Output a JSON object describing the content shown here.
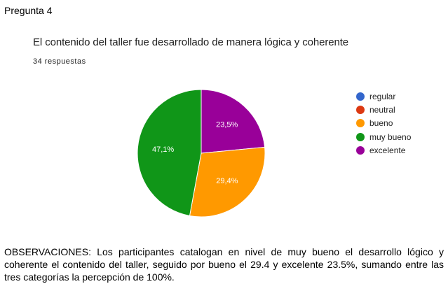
{
  "page": {
    "heading": "Pregunta 4",
    "observations": "OBSERVACIONES: Los participantes catalogan en nivel de muy bueno el desarrollo lógico y coherente el contenido del taller, seguido por bueno el 29.4 y excelente 23.5%, sumando entre las tres categorías la percepción de 100%."
  },
  "chart_data": {
    "type": "pie",
    "title": "El contenido del taller fue desarrollado de manera lógica y coherente",
    "subtitle": "34 respuestas",
    "legend_position": "right",
    "categories": [
      "regular",
      "neutral",
      "bueno",
      "muy bueno",
      "excelente"
    ],
    "values": [
      0,
      0,
      29.4,
      47.1,
      23.5
    ],
    "labels": [
      "",
      "",
      "29,4%",
      "47,1%",
      "23,5%"
    ],
    "colors": [
      "#3366cc",
      "#dc3912",
      "#ff9900",
      "#109618",
      "#990099"
    ]
  }
}
